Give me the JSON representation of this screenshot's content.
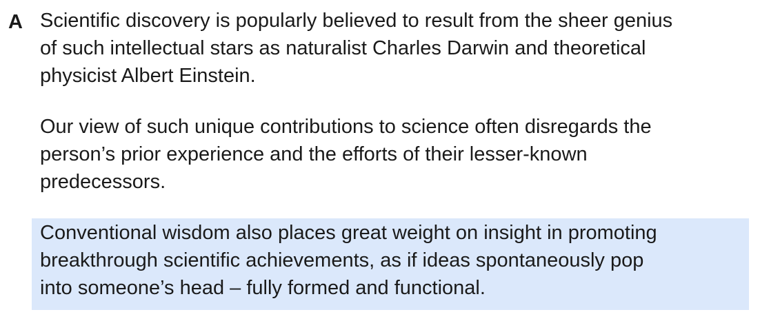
{
  "section": {
    "letter": "A",
    "paragraphs": [
      {
        "lines": [
          "Scientific discovery is popularly believed to result from the sheer genius",
          "of such intellectual stars as naturalist Charles Darwin and theoretical",
          "physicist Albert Einstein."
        ]
      },
      {
        "lines": [
          "Our view of such unique contributions to science often disregards the",
          "person’s prior experience and the efforts of their lesser-known",
          "predecessors."
        ]
      },
      {
        "highlighted": true,
        "highlight_color": "#dbe8fb",
        "lines": [
          "Conventional wisdom also places great weight on insight in promoting",
          "breakthrough scientific achievements, as if ideas spontaneously pop",
          "into someone’s head – fully formed and functional."
        ]
      }
    ]
  }
}
